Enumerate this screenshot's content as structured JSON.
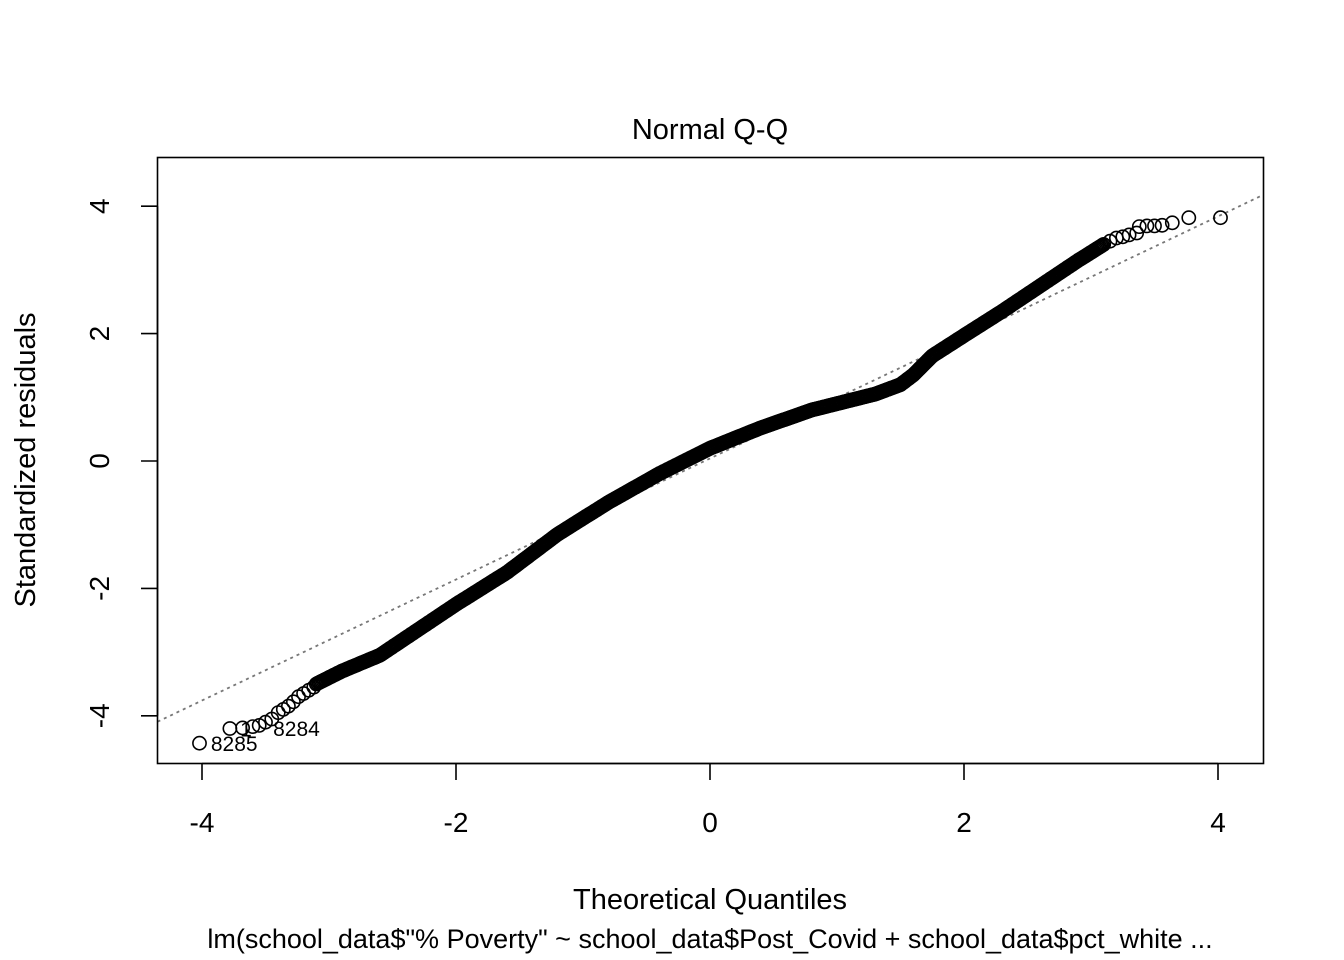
{
  "chart_data": {
    "type": "scatter",
    "title": "Normal Q-Q",
    "xlabel": "Theoretical Quantiles",
    "ylabel": "Standardized residuals",
    "subtitle": "lm(school_data$\"% Poverty\" ~ school_data$Post_Covid + school_data$pct_white ...",
    "xlim": [
      -4.35,
      4.35
    ],
    "ylim": [
      -4.8,
      4.75
    ],
    "xticks": [
      -4,
      -2,
      0,
      2,
      4
    ],
    "xtick_labels": [
      "-4",
      "-2",
      "0",
      "2",
      "4"
    ],
    "yticks": [
      -4,
      -2,
      0,
      2,
      4
    ],
    "ytick_labels": [
      "-4",
      "-2",
      "0",
      "2",
      "4"
    ],
    "grid": false,
    "reference_line": {
      "intercept": 0.04,
      "slope": 0.95,
      "style": "dotted",
      "color": "#777777"
    },
    "curve_points": [
      [
        -3.1,
        -3.5
      ],
      [
        -2.9,
        -3.3
      ],
      [
        -2.6,
        -3.05
      ],
      [
        -2.3,
        -2.65
      ],
      [
        -2.0,
        -2.25
      ],
      [
        -1.6,
        -1.75
      ],
      [
        -1.2,
        -1.15
      ],
      [
        -0.8,
        -0.65
      ],
      [
        -0.4,
        -0.2
      ],
      [
        0.0,
        0.2
      ],
      [
        0.4,
        0.52
      ],
      [
        0.8,
        0.8
      ],
      [
        1.1,
        0.95
      ],
      [
        1.3,
        1.05
      ],
      [
        1.5,
        1.2
      ],
      [
        1.6,
        1.35
      ],
      [
        1.75,
        1.65
      ],
      [
        2.0,
        1.97
      ],
      [
        2.3,
        2.35
      ],
      [
        2.6,
        2.75
      ],
      [
        2.9,
        3.15
      ],
      [
        3.1,
        3.4
      ]
    ],
    "tail_points": [
      [
        -4.02,
        -4.43
      ],
      [
        -3.78,
        -4.2
      ],
      [
        -3.68,
        -4.19
      ],
      [
        -3.6,
        -4.17
      ],
      [
        -3.55,
        -4.15
      ],
      [
        -3.5,
        -4.1
      ],
      [
        -3.45,
        -4.05
      ],
      [
        -3.4,
        -3.95
      ],
      [
        -3.36,
        -3.9
      ],
      [
        -3.32,
        -3.85
      ],
      [
        -3.28,
        -3.78
      ],
      [
        -3.24,
        -3.7
      ],
      [
        -3.2,
        -3.65
      ],
      [
        -3.16,
        -3.6
      ],
      [
        -3.12,
        -3.55
      ],
      [
        3.15,
        3.45
      ],
      [
        3.2,
        3.5
      ],
      [
        3.25,
        3.52
      ],
      [
        3.3,
        3.55
      ],
      [
        3.36,
        3.58
      ],
      [
        3.38,
        3.68
      ],
      [
        3.44,
        3.69
      ],
      [
        3.5,
        3.69
      ],
      [
        3.56,
        3.7
      ],
      [
        3.64,
        3.74
      ],
      [
        3.77,
        3.82
      ],
      [
        4.02,
        3.82
      ]
    ],
    "annotations": [
      {
        "text": "8285",
        "x": -3.93,
        "y": -4.43
      },
      {
        "text": "1",
        "x": -3.7,
        "y": -4.2
      },
      {
        "text": "8284",
        "x": -3.44,
        "y": -4.19
      }
    ]
  }
}
